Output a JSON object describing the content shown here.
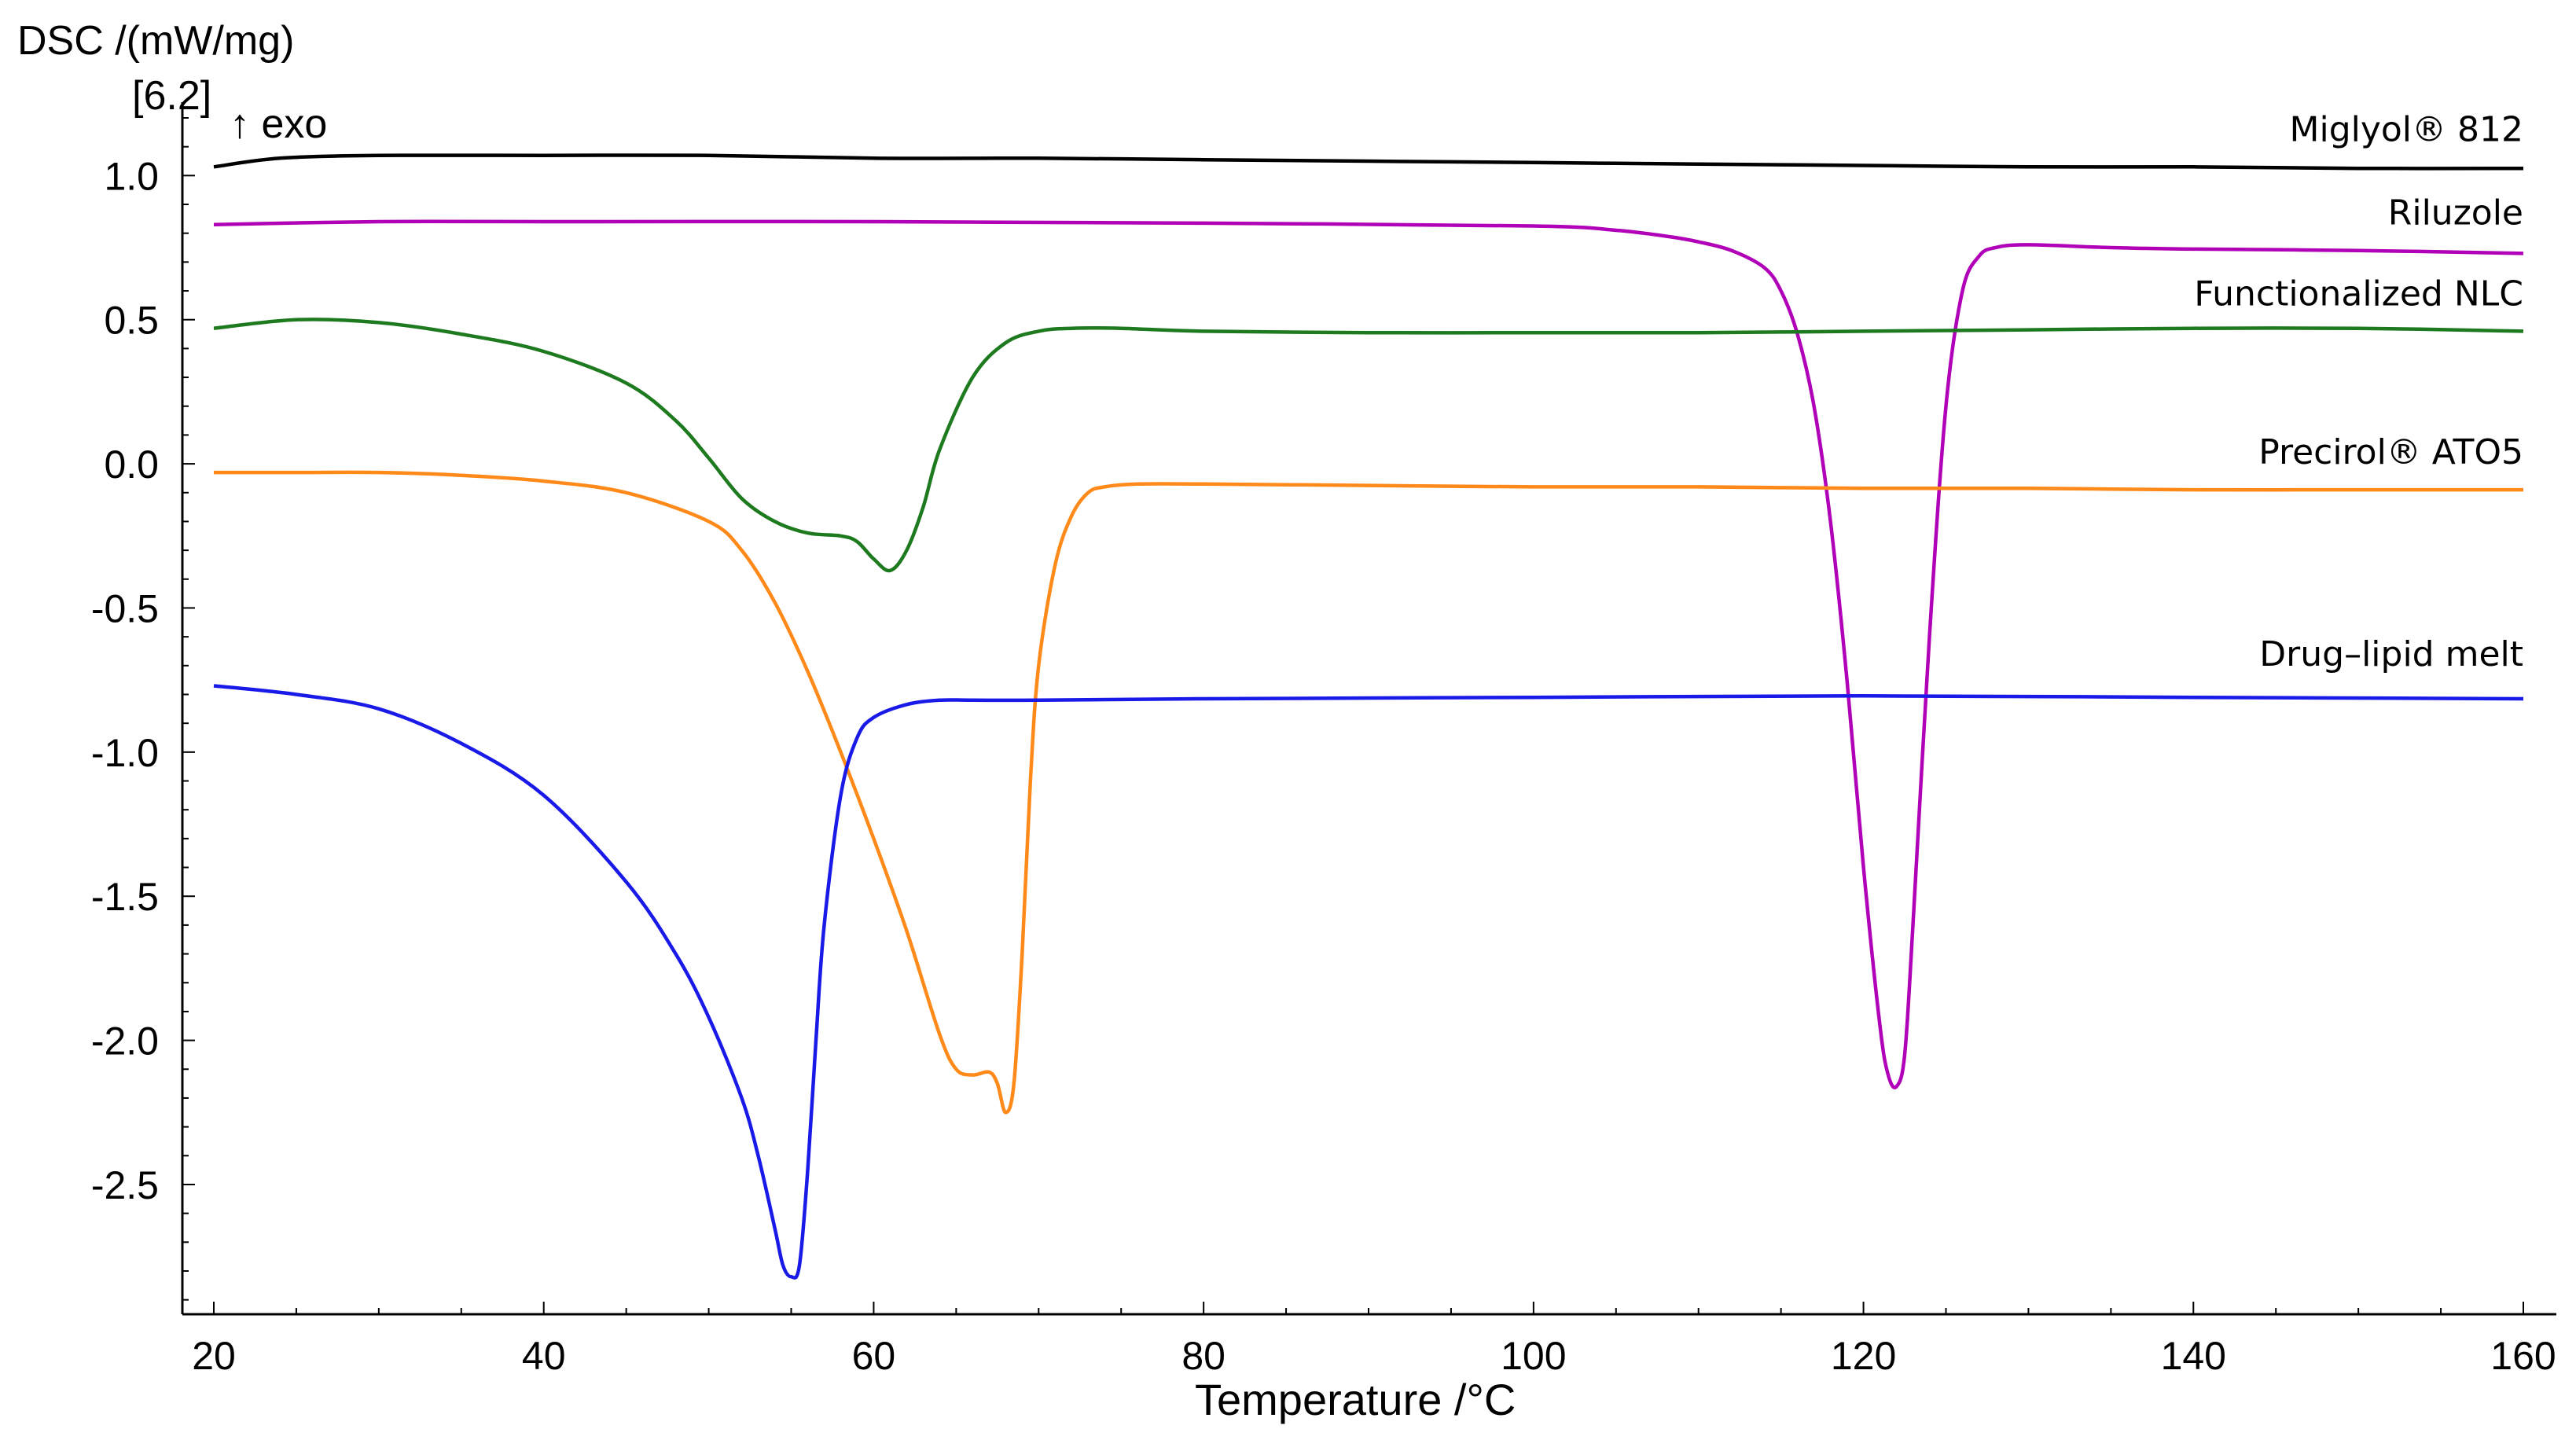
{
  "chart_data": {
    "type": "line",
    "title": "",
    "ylabel": "DSC /(mW/mg)",
    "ylabel_note": "[6.2]",
    "exo_label": "↑ exo",
    "xlabel": "Temperature /°C",
    "xlim": [
      20,
      160
    ],
    "ylim": [
      -2.95,
      1.2
    ],
    "xticks": [
      20,
      40,
      60,
      80,
      100,
      120,
      140,
      160
    ],
    "ytick_values": [
      1.0,
      0.5,
      0.0,
      -0.5,
      -1.0,
      -1.5,
      -2.0,
      -2.5
    ],
    "ytick_labels": [
      "1.0",
      "0.5",
      "0.0",
      "-0.5",
      "-1.0",
      "-1.5",
      "-2.0",
      "-2.5"
    ],
    "grid": false,
    "series": [
      {
        "name": "Miglyol® 812",
        "color": "#000000",
        "label_y": 1.12,
        "x": [
          20,
          24,
          30,
          40,
          50,
          60,
          70,
          80,
          90,
          100,
          110,
          120,
          130,
          140,
          150,
          160
        ],
        "y": [
          1.03,
          1.06,
          1.07,
          1.07,
          1.07,
          1.06,
          1.06,
          1.055,
          1.05,
          1.045,
          1.04,
          1.035,
          1.03,
          1.03,
          1.025,
          1.025
        ]
      },
      {
        "name": "Riluzole",
        "color": "#b000b8",
        "label_y": 0.83,
        "x": [
          20,
          30,
          40,
          60,
          80,
          100,
          105,
          108,
          110,
          112,
          114,
          115,
          116,
          117,
          118,
          119,
          120,
          121,
          121.5,
          122,
          122.5,
          123,
          124,
          125,
          126,
          127,
          128,
          130,
          135,
          140,
          150,
          160
        ],
        "y": [
          0.83,
          0.84,
          0.84,
          0.84,
          0.835,
          0.825,
          0.81,
          0.79,
          0.77,
          0.74,
          0.68,
          0.6,
          0.45,
          0.2,
          -0.2,
          -0.75,
          -1.4,
          -1.95,
          -2.12,
          -2.16,
          -2.05,
          -1.6,
          -0.6,
          0.2,
          0.6,
          0.72,
          0.75,
          0.76,
          0.75,
          0.745,
          0.74,
          0.73
        ]
      },
      {
        "name": "Functionalized NLC",
        "color": "#1e7a1e",
        "label_y": 0.55,
        "x": [
          20,
          25,
          30,
          35,
          40,
          45,
          48,
          50,
          52,
          54,
          56,
          58,
          59,
          60,
          61,
          62,
          63,
          64,
          66,
          68,
          70,
          72,
          75,
          80,
          90,
          100,
          110,
          120,
          130,
          140,
          150,
          160
        ],
        "y": [
          0.47,
          0.5,
          0.49,
          0.45,
          0.39,
          0.28,
          0.15,
          0.02,
          -0.12,
          -0.2,
          -0.24,
          -0.25,
          -0.27,
          -0.33,
          -0.37,
          -0.3,
          -0.15,
          0.05,
          0.3,
          0.42,
          0.46,
          0.47,
          0.47,
          0.46,
          0.455,
          0.455,
          0.455,
          0.46,
          0.465,
          0.47,
          0.47,
          0.46
        ]
      },
      {
        "name": "Precirol® ATO5",
        "color": "#ff8a1a",
        "label_y": 0.0,
        "x": [
          20,
          25,
          30,
          35,
          40,
          45,
          50,
          52,
          54,
          56,
          58,
          60,
          62,
          64,
          65,
          66,
          67,
          67.5,
          68,
          68.5,
          69,
          69.5,
          70,
          71,
          72,
          73,
          74,
          76,
          80,
          90,
          100,
          110,
          120,
          130,
          140,
          150,
          160
        ],
        "y": [
          -0.03,
          -0.03,
          -0.03,
          -0.04,
          -0.06,
          -0.1,
          -0.2,
          -0.3,
          -0.48,
          -0.72,
          -1.0,
          -1.3,
          -1.62,
          -1.98,
          -2.1,
          -2.12,
          -2.11,
          -2.15,
          -2.25,
          -2.15,
          -1.7,
          -1.1,
          -0.7,
          -0.35,
          -0.18,
          -0.1,
          -0.08,
          -0.07,
          -0.07,
          -0.075,
          -0.08,
          -0.08,
          -0.085,
          -0.085,
          -0.09,
          -0.09,
          -0.09
        ]
      },
      {
        "name": "Drug–lipid melt",
        "color": "#1a1ae8",
        "label_y": -0.7,
        "x": [
          20,
          25,
          30,
          35,
          40,
          45,
          48,
          50,
          52,
          53,
          54,
          54.5,
          55,
          55.5,
          56,
          56.5,
          57,
          58,
          59,
          60,
          62,
          64,
          66,
          70,
          80,
          100,
          120,
          140,
          160
        ],
        "y": [
          -0.77,
          -0.8,
          -0.85,
          -0.97,
          -1.15,
          -1.45,
          -1.7,
          -1.92,
          -2.2,
          -2.4,
          -2.65,
          -2.78,
          -2.82,
          -2.78,
          -2.45,
          -2.0,
          -1.6,
          -1.15,
          -0.95,
          -0.88,
          -0.835,
          -0.82,
          -0.82,
          -0.82,
          -0.815,
          -0.81,
          -0.805,
          -0.81,
          -0.815
        ]
      }
    ]
  }
}
